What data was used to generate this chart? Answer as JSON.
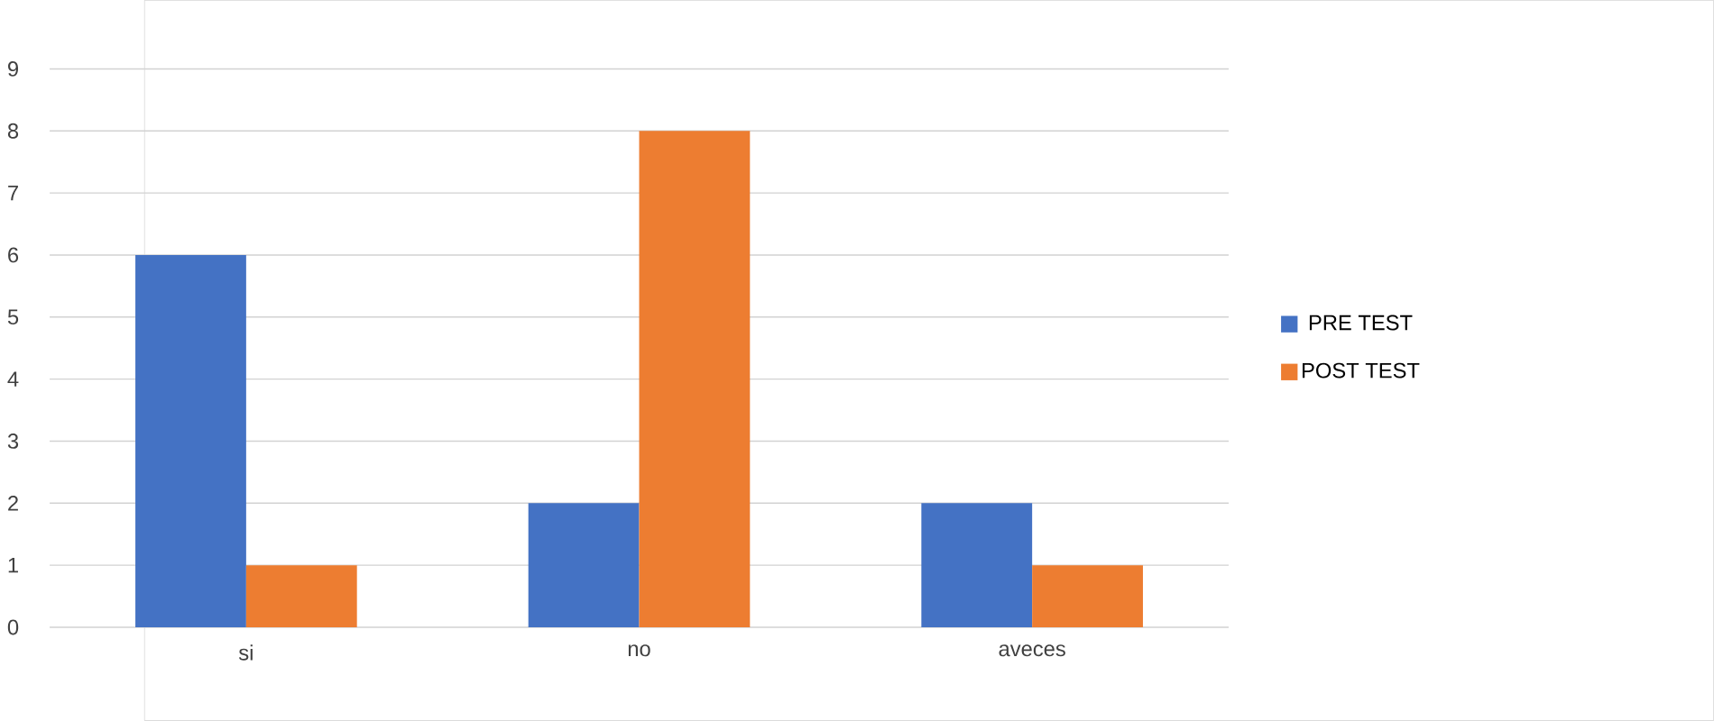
{
  "chart_data": {
    "type": "bar",
    "categories": [
      "si",
      "no",
      "aveces"
    ],
    "series": [
      {
        "name": "PRE TEST",
        "color": "#4472c4",
        "values": [
          6,
          2,
          2
        ]
      },
      {
        "name": "POST TEST",
        "color": "#ed7d31",
        "values": [
          1,
          8,
          1
        ]
      }
    ],
    "ylim": [
      0,
      9
    ],
    "yticks": [
      0,
      1,
      2,
      3,
      4,
      5,
      6,
      7,
      8,
      9
    ],
    "grid": "y",
    "legend": "right"
  }
}
